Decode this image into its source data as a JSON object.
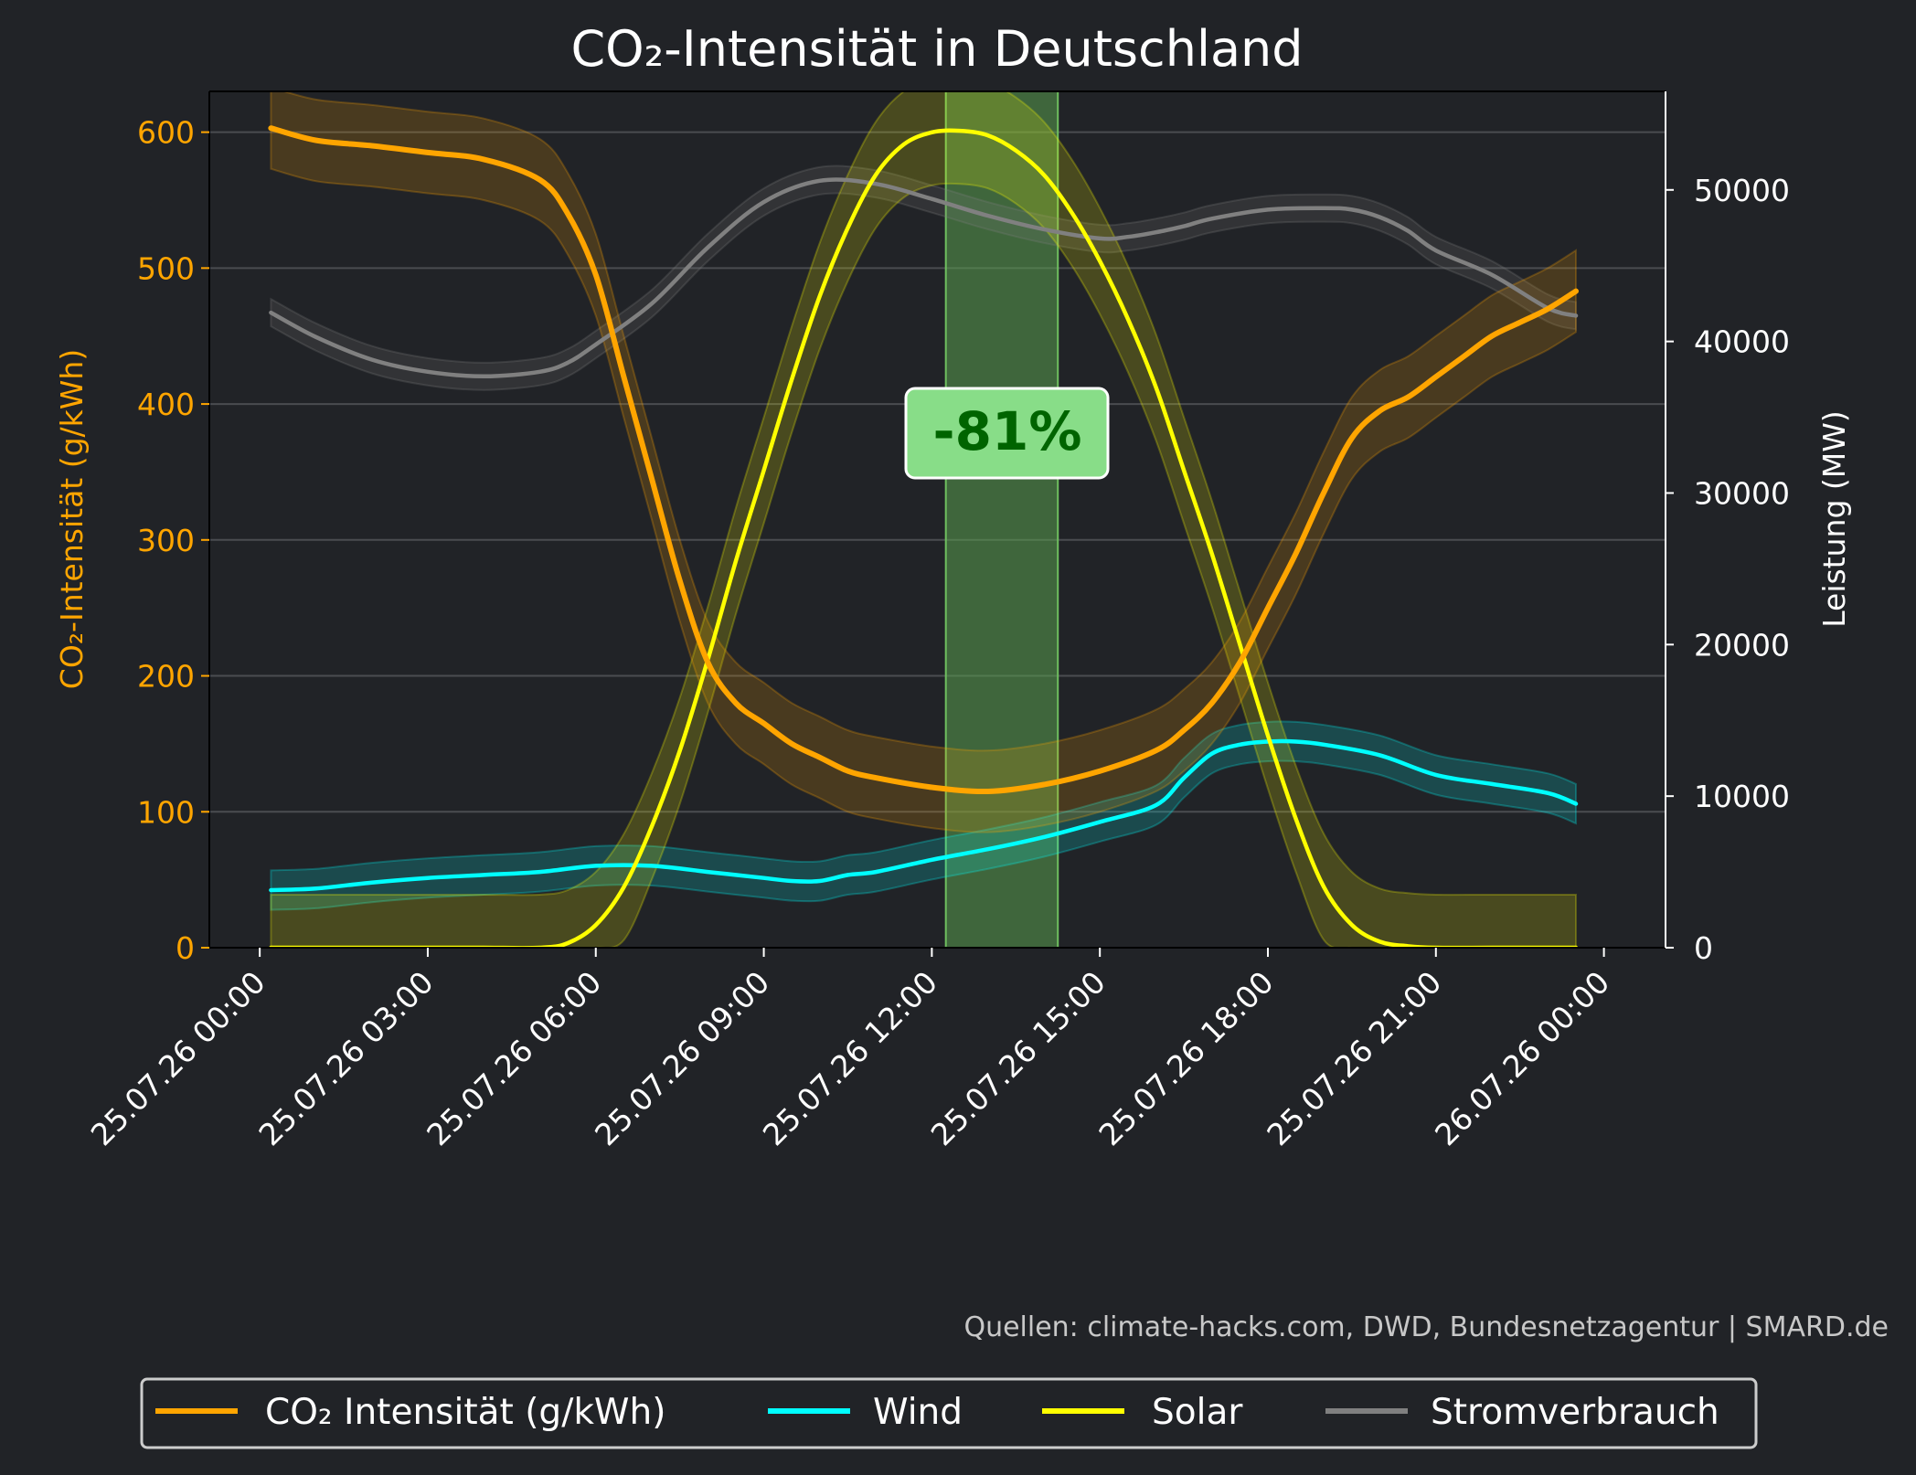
{
  "chart_data": {
    "type": "line",
    "title": "CO₂-Intensität in Deutschland",
    "source_note": "Quellen: climate-hacks.com, DWD, Bundesnetzagentur | SMARD.de",
    "x_ticks": [
      "25.07.26 00:00",
      "25.07.26 03:00",
      "25.07.26 06:00",
      "25.07.26 09:00",
      "25.07.26 12:00",
      "25.07.26 15:00",
      "25.07.26 18:00",
      "25.07.26 21:00",
      "26.07.26 00:00"
    ],
    "x_tick_hours": [
      0,
      3,
      6,
      9,
      12,
      15,
      18,
      21,
      24
    ],
    "xlim_hours": [
      -0.9,
      25.1
    ],
    "y_left": {
      "label": "CO₂-Intensität (g/kWh)",
      "lim": [
        0,
        630
      ],
      "ticks": [
        "0",
        "100",
        "200",
        "300",
        "400",
        "500",
        "600"
      ],
      "tick_values": [
        0,
        100,
        200,
        300,
        400,
        500,
        600
      ]
    },
    "y_right": {
      "label": "Leistung (MW)",
      "lim": [
        0,
        56500
      ],
      "ticks": [
        "0",
        "10000",
        "20000",
        "30000",
        "40000",
        "50000"
      ],
      "tick_values": [
        0,
        10000,
        20000,
        30000,
        40000,
        50000
      ]
    },
    "grid": "horizontal",
    "legend_position": "bottom",
    "highlight": {
      "x_start": 12.25,
      "x_end": 14.25,
      "label": "-81%"
    },
    "series": [
      {
        "name": "CO₂ Intensität (g/kWh)",
        "axis": "left",
        "color": "#ffa500",
        "band": 30,
        "x": [
          0.2,
          1,
          2,
          3,
          4,
          5,
          5.5,
          6,
          6.5,
          7,
          7.5,
          8,
          8.5,
          9,
          9.5,
          10,
          10.5,
          11,
          12,
          13,
          14,
          15,
          16,
          16.5,
          17,
          17.5,
          18,
          18.5,
          19,
          19.5,
          20,
          20.5,
          21,
          21.5,
          22,
          22.5,
          23,
          23.5
        ],
        "y": [
          603,
          594,
          590,
          585,
          580,
          565,
          540,
          495,
          420,
          345,
          270,
          210,
          180,
          165,
          150,
          140,
          130,
          125,
          118,
          115,
          120,
          130,
          145,
          160,
          180,
          210,
          250,
          290,
          335,
          375,
          395,
          405,
          420,
          435,
          450,
          460,
          470,
          483
        ]
      },
      {
        "name": "Wind",
        "axis": "right",
        "color": "#00ffff",
        "band": 1300,
        "x": [
          0.2,
          1,
          2,
          3,
          4,
          5,
          6,
          7,
          8,
          8.5,
          9,
          9.5,
          10,
          10.5,
          11,
          12,
          13,
          14,
          15,
          16,
          16.5,
          17,
          17.5,
          18,
          18.5,
          19,
          20,
          21,
          22,
          23,
          23.5
        ],
        "y": [
          3800,
          3900,
          4300,
          4600,
          4800,
          5000,
          5400,
          5400,
          5000,
          4800,
          4600,
          4400,
          4400,
          4800,
          5000,
          5800,
          6500,
          7300,
          8300,
          9400,
          11200,
          12800,
          13400,
          13600,
          13600,
          13400,
          12700,
          11400,
          10800,
          10200,
          9500
        ]
      },
      {
        "name": "Solar",
        "axis": "right",
        "color": "#ffff00",
        "band": 3500,
        "x": [
          0.2,
          1,
          2,
          3,
          4,
          5,
          5.5,
          6,
          6.5,
          7,
          7.5,
          8,
          8.5,
          9,
          9.5,
          10,
          10.5,
          11,
          11.5,
          12,
          12.5,
          13,
          13.5,
          14,
          14.5,
          15,
          15.5,
          16,
          16.5,
          17,
          17.5,
          18,
          18.5,
          19,
          19.5,
          20,
          20.5,
          21,
          22,
          23,
          23.5
        ],
        "y": [
          0,
          0,
          0,
          0,
          0,
          0,
          300,
          1500,
          4000,
          8000,
          13000,
          19000,
          25500,
          31500,
          37500,
          43000,
          47500,
          51000,
          53000,
          53800,
          53900,
          53600,
          52600,
          51000,
          48500,
          45300,
          41500,
          37000,
          31500,
          26000,
          20000,
          14000,
          8500,
          4000,
          1500,
          400,
          100,
          0,
          0,
          0,
          0
        ]
      },
      {
        "name": "Stromverbrauch",
        "axis": "right",
        "color": "#808080",
        "band": 900,
        "x": [
          0.2,
          1,
          2,
          3,
          4,
          5,
          5.5,
          6,
          7,
          8,
          9,
          10,
          11,
          12,
          13,
          14,
          15,
          15.5,
          16,
          16.5,
          17,
          18,
          19,
          19.5,
          20,
          20.5,
          21,
          22,
          23,
          23.5
        ],
        "y": [
          41900,
          40300,
          38800,
          38000,
          37700,
          38000,
          38600,
          39800,
          42500,
          46200,
          49200,
          50600,
          50400,
          49400,
          48300,
          47400,
          46800,
          46900,
          47200,
          47600,
          48100,
          48700,
          48800,
          48700,
          48200,
          47300,
          46000,
          44400,
          42200,
          41700
        ]
      }
    ]
  }
}
